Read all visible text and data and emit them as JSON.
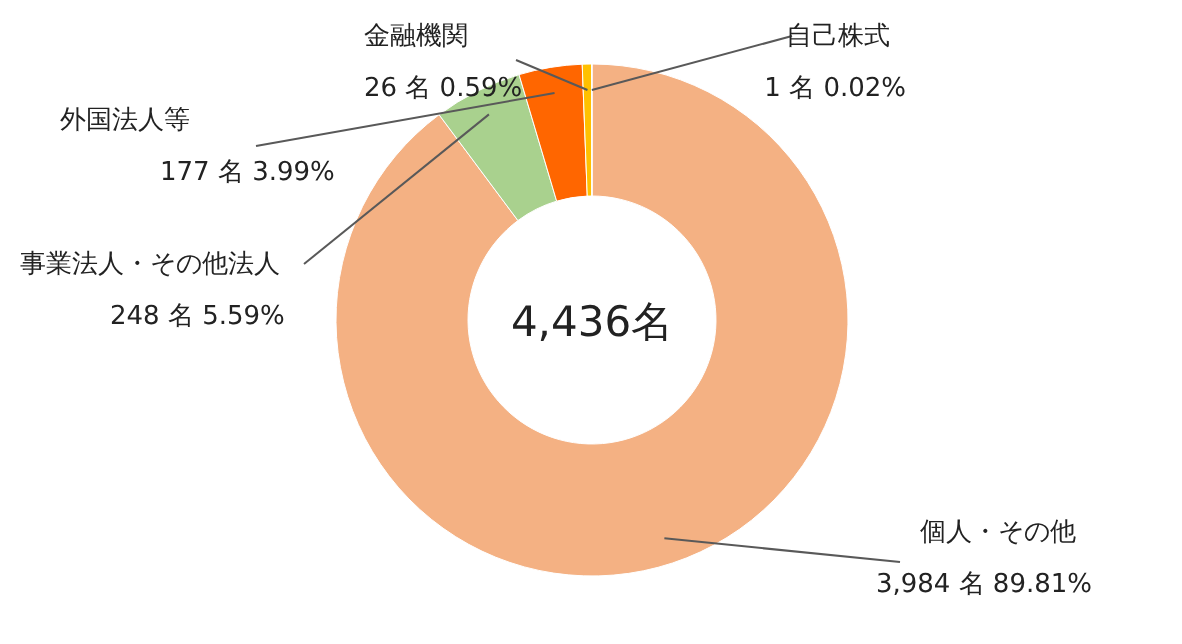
{
  "chart_data": {
    "type": "donut",
    "categories": [
      "個人・その他",
      "事業法人・その他法人",
      "外国法人等",
      "金融機関",
      "自己株式"
    ],
    "values": [
      3984,
      248,
      177,
      26,
      1
    ],
    "value_labels": [
      "3,984 名 89.81%",
      "248 名 5.59%",
      "177 名 3.99%",
      "26 名 0.59%",
      "1 名 0.02%"
    ],
    "colors": [
      "#f4b183",
      "#a9d18e",
      "#ff6600",
      "#ffc000",
      "#ffd966"
    ],
    "annotations": [
      "4,436名"
    ]
  }
}
